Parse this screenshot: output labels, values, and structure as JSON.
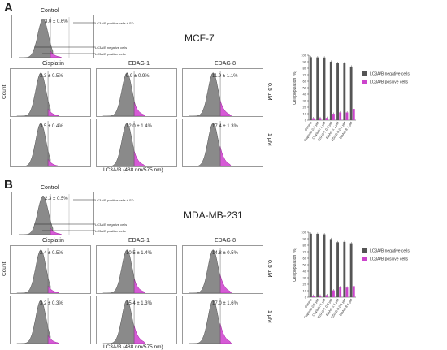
{
  "figure": {
    "panels": [
      {
        "letter": "A",
        "cell_line": "MCF-7",
        "control_label": "Control",
        "control_value": "3.0 ± 0.6%",
        "annot_pos_sd": "LC3A/B positive cells ± SD",
        "annot_neg": "LC3A/B negative cells",
        "annot_pos": "LC3A/B positive cells",
        "columns": [
          "Cisplatin",
          "EDAG-1",
          "EDAG-8"
        ],
        "rows": [
          "0.5 µM",
          "1 µM"
        ],
        "values": [
          [
            "3.3 ± 0.5%",
            "9.9 ± 0.9%",
            "11.9 ± 1.1%"
          ],
          [
            "3.5 ± 0.4%",
            "12.0 ± 1.4%",
            "17.4 ± 1.3%"
          ]
        ],
        "pos_level": [
          [
            0.02,
            0.1,
            0.12
          ],
          [
            0.02,
            0.12,
            0.17
          ]
        ],
        "count_label": "Count",
        "x_label": "LC3A/B (488 nm/575 nm)"
      },
      {
        "letter": "B",
        "cell_line": "MDA-MB-231",
        "control_label": "Control",
        "control_value": "2.3 ± 0.5%",
        "annot_pos_sd": "LC3A/B positive cells ± SD",
        "annot_neg": "LC3A/B negative cells",
        "annot_pos": "LC3A/B positive cells",
        "columns": [
          "Cisplatin",
          "EDAG-1",
          "EDAG-8"
        ],
        "rows": [
          "0.5 µM",
          "1 µM"
        ],
        "values": [
          [
            "2.4 ± 0.5%",
            "10.5 ± 1.4%",
            "14.8 ± 0.5%"
          ],
          [
            "3.2 ± 0.3%",
            "15.4 ± 1.3%",
            "17.0 ± 1.6%"
          ]
        ],
        "pos_level": [
          [
            0.02,
            0.1,
            0.15
          ],
          [
            0.03,
            0.15,
            0.17
          ]
        ],
        "count_label": "Count",
        "x_label": "LC3A/B (488 nm/575 nm)"
      }
    ]
  },
  "chart_data": [
    {
      "type": "bar",
      "categories": [
        "Control",
        "Cisplatin 0.5 µM",
        "Cisplatin 1 µM",
        "EDAG-1 0.5 µM",
        "EDAG-1 1 µM",
        "EDAG-8 0.5 µM",
        "EDAG-8 1 µM"
      ],
      "series": [
        {
          "name": "LC3A/B negative cells",
          "values": [
            97.0,
            96.7,
            96.5,
            90.1,
            88.0,
            88.1,
            82.6
          ],
          "color": "#555555"
        },
        {
          "name": "LC3A/B positive cells",
          "values": [
            3.0,
            3.3,
            3.5,
            9.9,
            12.0,
            11.9,
            17.4
          ],
          "color": "#cc44cc"
        }
      ],
      "ylabel": "Cell population [%]",
      "ylim": [
        0,
        100
      ],
      "yticks": [
        0,
        10,
        20,
        30,
        40,
        50,
        60,
        70,
        80,
        90,
        100
      ],
      "legend": "right"
    },
    {
      "type": "bar",
      "categories": [
        "Control",
        "Cisplatin 0.5 µM",
        "Cisplatin 1 µM",
        "EDAG-1 0.5 µM",
        "EDAG-1 1 µM",
        "EDAG-8 0.5 µM",
        "EDAG-8 1 µM"
      ],
      "series": [
        {
          "name": "LC3A/B negative cells",
          "values": [
            97.7,
            97.6,
            96.8,
            89.5,
            84.6,
            85.2,
            83.0
          ],
          "color": "#555555"
        },
        {
          "name": "LC3A/B positive cells",
          "values": [
            2.3,
            2.4,
            3.2,
            10.5,
            15.4,
            14.8,
            17.0
          ],
          "color": "#cc44cc"
        }
      ],
      "ylabel": "Cell population [%]",
      "ylim": [
        0,
        100
      ],
      "yticks": [
        0,
        10,
        20,
        30,
        40,
        50,
        60,
        70,
        80,
        90,
        100
      ],
      "legend": "right"
    }
  ]
}
